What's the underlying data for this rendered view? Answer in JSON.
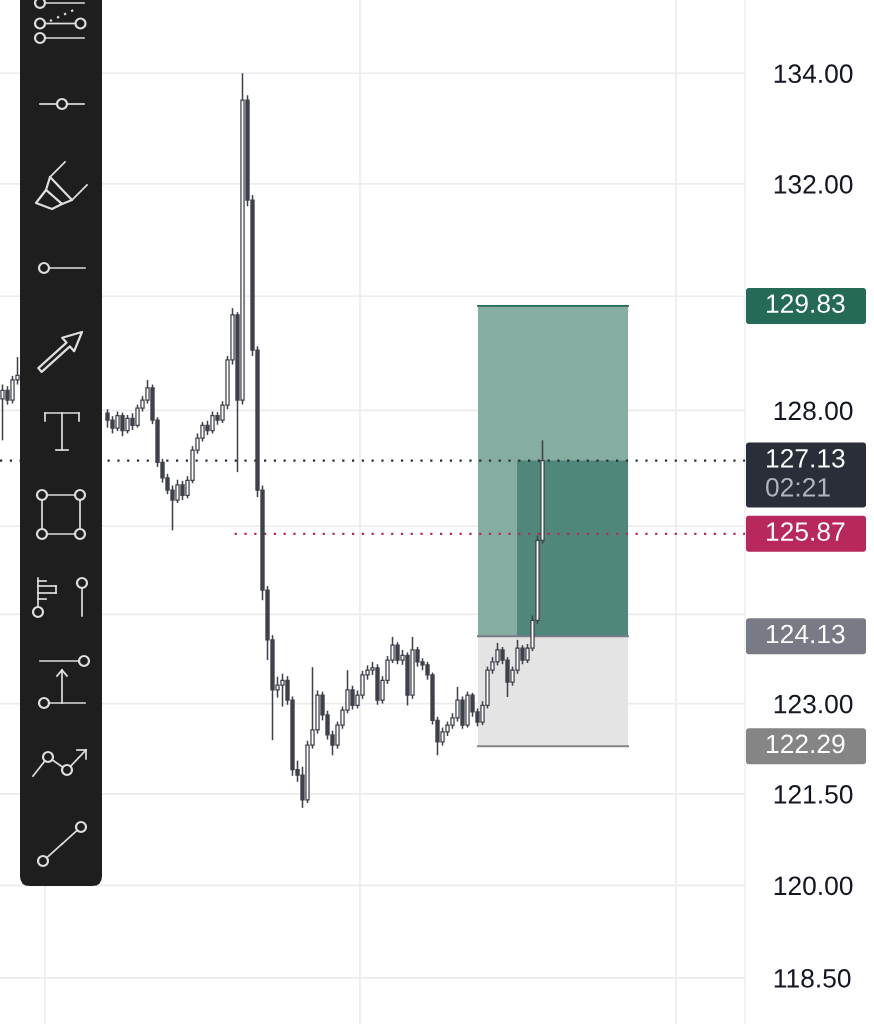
{
  "chart_data": {
    "type": "candlestick",
    "color": "#3f414b",
    "log": true,
    "grid": true,
    "tick_labels": "y",
    "ylim": [
      117.76,
      135.34
    ],
    "yticks": [
      {
        "value": 134,
        "label": "134.00"
      },
      {
        "value": 132,
        "label": "132.00"
      },
      {
        "value": 130,
        "label": null
      },
      {
        "value": 128,
        "label": "128.00"
      },
      {
        "value": 126,
        "label": null
      },
      {
        "value": 124.5,
        "label": null
      },
      {
        "value": 123,
        "label": "123.00"
      },
      {
        "value": 121.5,
        "label": "121.50"
      },
      {
        "value": 120,
        "label": "120.00"
      },
      {
        "value": 118.5,
        "label": "118.50"
      }
    ],
    "categories": [
      null,
      null,
      null,
      null,
      null,
      null,
      null,
      null,
      null,
      null,
      null,
      null,
      null,
      null,
      null,
      null,
      null,
      null,
      null,
      null,
      null,
      null,
      null,
      null,
      null,
      null,
      null,
      null,
      null,
      null,
      null,
      null,
      null,
      null,
      null,
      null,
      null,
      null,
      null,
      null,
      null,
      null,
      null,
      null,
      null,
      null,
      null,
      null,
      null,
      null,
      null,
      null,
      null,
      null,
      null,
      null,
      null,
      null,
      null,
      null,
      null,
      null,
      null,
      null,
      null,
      null,
      null,
      null,
      null,
      null,
      null,
      null,
      null,
      null,
      null,
      null,
      null,
      null,
      null,
      null,
      null,
      null,
      null,
      null,
      null,
      null,
      null,
      null,
      null,
      null,
      null,
      null,
      null,
      null,
      null,
      null,
      null,
      null,
      null,
      null,
      null,
      null,
      null,
      null,
      null,
      null,
      null,
      null,
      null,
      null,
      null,
      null,
      null,
      null,
      null,
      null,
      null,
      null,
      null,
      null,
      null,
      null,
      null,
      null,
      null,
      null,
      null,
      null,
      null,
      null,
      null,
      null,
      null,
      null,
      null,
      null,
      null,
      null,
      null,
      null,
      null,
      null,
      null,
      null,
      null,
      null,
      null,
      null,
      null
    ],
    "ohlc": [
      [
        128.2,
        128.45,
        127.48,
        128.35
      ],
      [
        128.35,
        128.42,
        128.1,
        128.18
      ],
      [
        128.18,
        128.6,
        128.12,
        128.53
      ],
      [
        128.53,
        128.93,
        128.45,
        128.61
      ],
      null,
      null,
      null,
      null,
      null,
      null,
      null,
      null,
      null,
      null,
      null,
      null,
      null,
      null,
      null,
      null,
      null,
      [
        127.95,
        128.02,
        127.7,
        127.83
      ],
      [
        127.83,
        127.9,
        127.6,
        127.69
      ],
      [
        127.69,
        127.98,
        127.64,
        127.91
      ],
      [
        127.91,
        127.96,
        127.55,
        127.65
      ],
      [
        127.65,
        127.92,
        127.6,
        127.86
      ],
      [
        127.86,
        127.95,
        127.66,
        127.74
      ],
      [
        127.74,
        128.1,
        127.7,
        128.04
      ],
      [
        128.04,
        128.25,
        127.98,
        128.18
      ],
      [
        128.18,
        128.53,
        128.12,
        128.39
      ],
      [
        128.39,
        128.45,
        127.76,
        127.83
      ],
      [
        127.83,
        127.88,
        127.02,
        127.1
      ],
      [
        127.1,
        127.16,
        126.75,
        126.83
      ],
      [
        126.83,
        126.9,
        126.55,
        126.62
      ],
      [
        126.62,
        126.7,
        125.93,
        126.45
      ],
      [
        126.45,
        126.8,
        126.4,
        126.71
      ],
      [
        126.71,
        126.78,
        126.45,
        126.53
      ],
      [
        126.53,
        126.86,
        126.48,
        126.79
      ],
      [
        126.79,
        127.38,
        126.74,
        127.31
      ],
      [
        127.31,
        127.6,
        127.25,
        127.52
      ],
      [
        127.52,
        127.8,
        127.46,
        127.74
      ],
      [
        127.74,
        127.82,
        127.57,
        127.65
      ],
      [
        127.65,
        127.98,
        127.6,
        127.91
      ],
      [
        127.91,
        127.97,
        127.75,
        127.83
      ],
      [
        127.83,
        128.16,
        127.78,
        128.09
      ],
      [
        128.09,
        128.95,
        128.02,
        128.88
      ],
      [
        128.88,
        129.79,
        128.8,
        129.67
      ],
      [
        129.67,
        129.72,
        126.93,
        128.18
      ],
      [
        128.18,
        134.0,
        128.1,
        133.51
      ],
      [
        133.51,
        133.6,
        131.6,
        131.71
      ],
      [
        131.71,
        131.8,
        128.95,
        129.05
      ],
      [
        129.05,
        129.12,
        126.5,
        126.62
      ],
      [
        126.62,
        126.7,
        124.74,
        124.91
      ],
      [
        124.91,
        124.98,
        123.73,
        124.07
      ],
      [
        124.07,
        124.15,
        122.39,
        123.23
      ],
      [
        123.23,
        123.45,
        123.1,
        123.31
      ],
      [
        123.31,
        123.5,
        122.95,
        123.39
      ],
      [
        123.39,
        123.46,
        122.98,
        123.06
      ],
      [
        123.06,
        123.12,
        121.8,
        121.9
      ],
      [
        121.9,
        122.05,
        121.7,
        121.81
      ],
      [
        121.81,
        121.95,
        121.27,
        121.4
      ],
      [
        121.4,
        122.38,
        121.35,
        122.31
      ],
      [
        122.31,
        123.61,
        122.25,
        122.56
      ],
      [
        122.56,
        123.22,
        122.5,
        123.14
      ],
      [
        123.14,
        123.2,
        122.72,
        122.81
      ],
      [
        122.81,
        122.88,
        122.4,
        122.48
      ],
      [
        122.48,
        122.55,
        122.14,
        122.31
      ],
      [
        122.31,
        122.7,
        122.25,
        122.64
      ],
      [
        122.64,
        122.95,
        122.58,
        122.89
      ],
      [
        122.89,
        123.56,
        122.84,
        123.23
      ],
      [
        123.23,
        123.3,
        122.9,
        122.97
      ],
      [
        122.97,
        123.22,
        122.92,
        123.14
      ],
      [
        123.14,
        123.55,
        123.08,
        123.48
      ],
      [
        123.48,
        123.64,
        123.4,
        123.56
      ],
      [
        123.56,
        123.7,
        123.48,
        123.6
      ],
      [
        123.6,
        123.66,
        122.98,
        123.06
      ],
      [
        123.06,
        123.46,
        123.0,
        123.39
      ],
      [
        123.39,
        123.8,
        123.33,
        123.73
      ],
      [
        123.73,
        124.12,
        123.68,
        123.98
      ],
      [
        123.98,
        124.03,
        123.66,
        123.73
      ],
      [
        123.73,
        123.9,
        123.65,
        123.81
      ],
      [
        123.81,
        123.86,
        122.97,
        123.14
      ],
      [
        123.14,
        124.12,
        123.08,
        123.9
      ],
      [
        123.9,
        123.95,
        123.62,
        123.7
      ],
      [
        123.7,
        123.76,
        123.56,
        123.65
      ],
      [
        123.65,
        123.7,
        123.4,
        123.48
      ],
      [
        123.48,
        123.52,
        122.65,
        122.72
      ],
      [
        122.72,
        122.78,
        122.14,
        122.36
      ],
      [
        122.36,
        122.6,
        122.3,
        122.53
      ],
      [
        122.53,
        122.7,
        122.46,
        122.64
      ],
      [
        122.64,
        122.84,
        122.58,
        122.76
      ],
      [
        122.76,
        123.28,
        122.7,
        123.06
      ],
      [
        123.06,
        123.12,
        122.58,
        122.64
      ],
      [
        122.64,
        123.2,
        122.6,
        123.14
      ],
      [
        123.14,
        123.18,
        122.78,
        122.86
      ],
      [
        122.86,
        122.92,
        122.62,
        122.69
      ],
      [
        122.69,
        123.04,
        122.64,
        122.97
      ],
      [
        122.97,
        123.62,
        122.92,
        123.56
      ],
      [
        123.56,
        123.78,
        123.5,
        123.7
      ],
      [
        123.7,
        124.02,
        123.64,
        123.9
      ],
      [
        123.9,
        123.95,
        123.66,
        123.73
      ],
      [
        123.73,
        123.78,
        123.11,
        123.36
      ],
      [
        123.36,
        123.62,
        123.3,
        123.56
      ],
      [
        123.56,
        124.07,
        123.5,
        123.93
      ],
      [
        123.93,
        123.98,
        123.66,
        123.73
      ],
      [
        123.73,
        124.0,
        123.68,
        123.93
      ],
      [
        123.93,
        124.48,
        123.88,
        124.4
      ],
      [
        124.4,
        125.84,
        124.34,
        125.76
      ],
      [
        125.76,
        127.48,
        125.7,
        127.13
      ],
      null,
      null,
      null,
      null,
      null,
      null,
      null,
      null,
      null,
      null,
      null,
      null,
      null,
      null,
      null,
      null,
      null,
      null,
      null,
      null,
      null,
      null,
      null,
      null,
      null,
      null,
      null,
      null,
      null,
      null,
      null,
      null,
      null,
      null,
      null,
      null,
      null,
      null,
      null,
      null
    ],
    "bands": [
      {
        "axis": "y",
        "from": 124.13,
        "to": 129.83,
        "color": "#86ada2"
      },
      {
        "axis": "y",
        "from": 122.29,
        "to": 124.13,
        "color": "#e4e4e4"
      },
      {
        "axis": "y",
        "from": 124.13,
        "to": 127.13,
        "color": "#50877b"
      }
    ],
    "ref_lines": [
      {
        "axis": "y",
        "value": 129.83,
        "color": "#246a57",
        "line_style": "solid"
      },
      {
        "axis": "y",
        "value": 127.13,
        "label": "127.13\n02:21",
        "color": "#2a2e39",
        "line_style": "dotted"
      },
      {
        "axis": "y",
        "value": 125.87,
        "label": "125.87",
        "color": "#b8285c",
        "line_style": "dotted"
      },
      {
        "axis": "y",
        "value": 124.13,
        "color": "#787b86",
        "line_style": "solid"
      },
      {
        "axis": "y",
        "value": 122.29,
        "color": "#858585",
        "line_style": "solid"
      }
    ],
    "annotations": [
      "129.83",
      "124.13",
      "122.29"
    ]
  }
}
